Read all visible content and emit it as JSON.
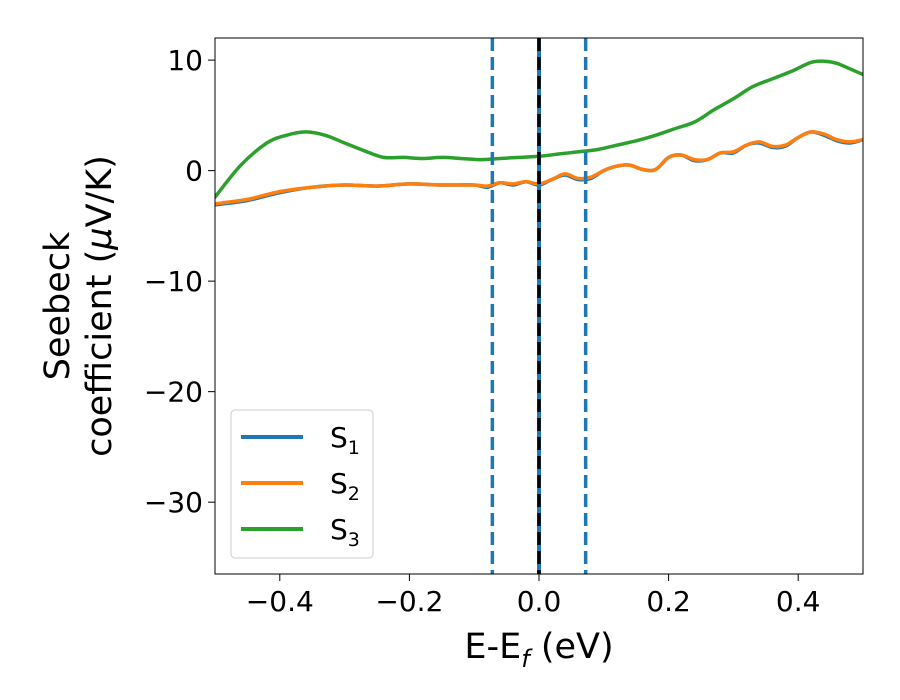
{
  "chart_data": {
    "type": "line",
    "xlabel": "E-E",
    "xlabel_sub": "f",
    "xlabel_unit": " (eV)",
    "ylabel_line1": "Seebeck",
    "ylabel_line2_pre": "coefficient  (",
    "ylabel_line2_mu": "μ",
    "ylabel_line2_post": "V/K)",
    "xlim": [
      -0.5,
      0.5
    ],
    "ylim": [
      -36.5,
      12
    ],
    "xticks": [
      -0.4,
      -0.2,
      0.0,
      0.2,
      0.4
    ],
    "xtick_labels": [
      "−0.4",
      "−0.2",
      "0.0",
      "0.2",
      "0.4"
    ],
    "yticks": [
      10,
      0,
      -10,
      -20,
      -30
    ],
    "ytick_labels": [
      "10",
      "0",
      "−10",
      "−20",
      "−30"
    ],
    "legend_position": "lower-left",
    "grid": false,
    "vertical_lines": [
      {
        "x": -0.072,
        "style": "dashed",
        "color": "#1f77b4"
      },
      {
        "x": 0.0,
        "style": "solid",
        "color": "#1f77b4"
      },
      {
        "x": 0.0,
        "style": "dashed",
        "color": "#000000"
      },
      {
        "x": 0.072,
        "style": "dashed",
        "color": "#1f77b4"
      }
    ],
    "series": [
      {
        "name": "S",
        "name_sub": "1",
        "color": "#1f77b4",
        "x": [
          -0.5,
          -0.45,
          -0.4,
          -0.35,
          -0.3,
          -0.25,
          -0.2,
          -0.15,
          -0.1,
          -0.08,
          -0.06,
          -0.04,
          -0.02,
          0.0,
          0.02,
          0.04,
          0.06,
          0.08,
          0.1,
          0.12,
          0.14,
          0.16,
          0.18,
          0.2,
          0.22,
          0.24,
          0.26,
          0.28,
          0.3,
          0.32,
          0.34,
          0.36,
          0.38,
          0.4,
          0.42,
          0.44,
          0.46,
          0.48,
          0.5
        ],
        "y": [
          -3.1,
          -2.7,
          -2.0,
          -1.5,
          -1.3,
          -1.4,
          -1.2,
          -1.3,
          -1.3,
          -1.5,
          -1.1,
          -1.3,
          -1.0,
          -1.3,
          -0.8,
          -0.4,
          -0.8,
          -0.7,
          0.0,
          0.4,
          0.5,
          0.1,
          0.1,
          1.2,
          1.4,
          0.9,
          1.0,
          1.6,
          1.6,
          2.3,
          2.5,
          2.1,
          2.2,
          3.0,
          3.5,
          3.2,
          2.7,
          2.5,
          2.8
        ]
      },
      {
        "name": "S",
        "name_sub": "2",
        "color": "#ff7f0e",
        "x": [
          -0.5,
          -0.45,
          -0.4,
          -0.35,
          -0.3,
          -0.25,
          -0.2,
          -0.15,
          -0.1,
          -0.08,
          -0.06,
          -0.04,
          -0.02,
          0.0,
          0.02,
          0.04,
          0.06,
          0.08,
          0.1,
          0.12,
          0.14,
          0.16,
          0.18,
          0.2,
          0.22,
          0.24,
          0.26,
          0.28,
          0.3,
          0.32,
          0.34,
          0.36,
          0.38,
          0.4,
          0.42,
          0.44,
          0.46,
          0.48,
          0.5
        ],
        "y": [
          -3.0,
          -2.6,
          -1.9,
          -1.5,
          -1.3,
          -1.4,
          -1.2,
          -1.3,
          -1.3,
          -1.4,
          -1.1,
          -1.2,
          -1.0,
          -1.2,
          -0.8,
          -0.3,
          -0.7,
          -0.6,
          0.0,
          0.4,
          0.5,
          0.1,
          0.1,
          1.2,
          1.4,
          1.0,
          1.0,
          1.6,
          1.7,
          2.3,
          2.6,
          2.2,
          2.3,
          3.0,
          3.5,
          3.3,
          2.8,
          2.6,
          2.8
        ]
      },
      {
        "name": "S",
        "name_sub": "3",
        "color": "#2ca02c",
        "x": [
          -0.5,
          -0.46,
          -0.42,
          -0.39,
          -0.36,
          -0.33,
          -0.3,
          -0.27,
          -0.24,
          -0.21,
          -0.18,
          -0.15,
          -0.12,
          -0.09,
          -0.06,
          -0.03,
          0.0,
          0.03,
          0.06,
          0.09,
          0.12,
          0.15,
          0.18,
          0.21,
          0.24,
          0.27,
          0.3,
          0.33,
          0.36,
          0.39,
          0.42,
          0.44,
          0.46,
          0.48,
          0.5
        ],
        "y": [
          -2.4,
          0.5,
          2.5,
          3.2,
          3.5,
          3.2,
          2.5,
          1.8,
          1.2,
          1.2,
          1.1,
          1.2,
          1.1,
          1.0,
          1.1,
          1.2,
          1.3,
          1.5,
          1.7,
          1.9,
          2.3,
          2.7,
          3.2,
          3.8,
          4.4,
          5.5,
          6.5,
          7.6,
          8.3,
          9.0,
          9.8,
          9.9,
          9.7,
          9.2,
          8.7
        ]
      }
    ]
  }
}
